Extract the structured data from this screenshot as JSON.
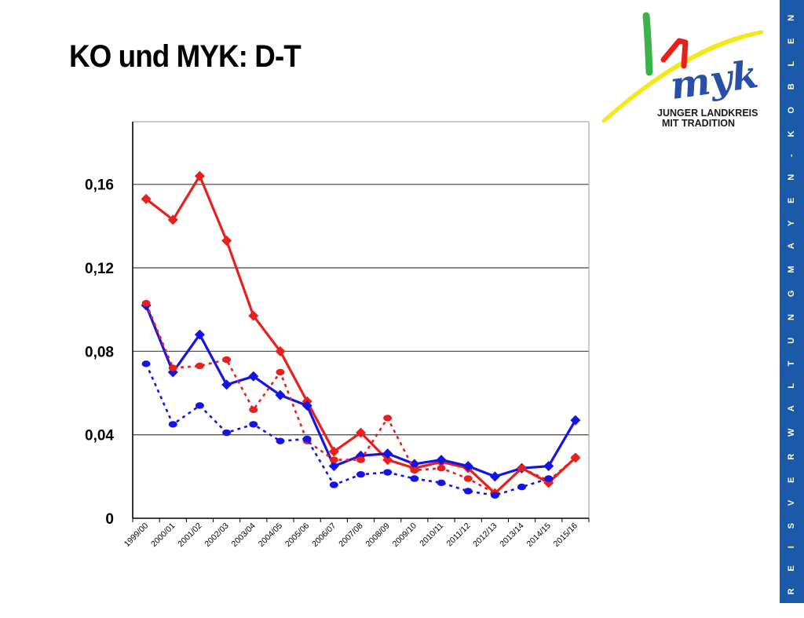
{
  "slide": {
    "title": "KO und MYK: D-T",
    "side_band_text": "K R E I S V E R W A L T U N G   M A Y E N - K O B L E N Z",
    "logo": {
      "wordmark": "myk",
      "tagline_line1": "JUNGER LANDKREIS",
      "tagline_line2": "MIT TRADITION"
    }
  },
  "colors": {
    "red": "#e8201c",
    "blue": "#1414e6",
    "side_band": "#1a5aa8",
    "logo_green": "#3cb34a",
    "logo_red": "#e8201c",
    "logo_yellow": "#f2e81c",
    "logo_blue": "#2a4fa8"
  },
  "chart_data": {
    "type": "line",
    "title": "",
    "xlabel": "",
    "ylabel": "",
    "ylim": [
      0,
      0.19
    ],
    "yticks": [
      0,
      0.04,
      0.08,
      0.12,
      0.16
    ],
    "ytick_labels": [
      "0",
      "0,04",
      "0,08",
      "0,12",
      "0,16"
    ],
    "grid": "horizontal",
    "legend": "none",
    "categories": [
      "1999/00",
      "2000/01",
      "2001/02",
      "2002/03",
      "2003/04",
      "2004/05",
      "2005/06",
      "2006/07",
      "2007/08",
      "2008/09",
      "2009/10",
      "2010/11",
      "2011/12",
      "2012/13",
      "2013/14",
      "2014/15",
      "2015/16"
    ],
    "series": [
      {
        "color": "#e8201c",
        "style": "solid",
        "marker": "diamond",
        "values": [
          0.153,
          0.143,
          0.164,
          0.133,
          0.097,
          0.08,
          0.056,
          0.032,
          0.041,
          0.028,
          0.024,
          0.027,
          0.024,
          0.012,
          0.024,
          0.017,
          0.029
        ]
      },
      {
        "color": "#1414e6",
        "style": "solid",
        "marker": "diamond",
        "values": [
          0.102,
          0.07,
          0.088,
          0.064,
          0.068,
          0.059,
          0.054,
          0.025,
          0.03,
          0.031,
          0.026,
          0.028,
          0.025,
          0.02,
          0.024,
          0.025,
          0.047
        ]
      },
      {
        "color": "#e8201c",
        "style": "dotted",
        "marker": "circle",
        "values": [
          0.103,
          0.072,
          0.073,
          0.076,
          0.052,
          0.07,
          0.037,
          0.028,
          0.028,
          0.048,
          0.023,
          0.024,
          0.019,
          0.012,
          0.024,
          0.018,
          0.029
        ]
      },
      {
        "color": "#1414e6",
        "style": "dotted",
        "marker": "circle",
        "values": [
          0.074,
          0.045,
          0.054,
          0.041,
          0.045,
          0.037,
          0.038,
          0.016,
          0.021,
          0.022,
          0.019,
          0.017,
          0.013,
          0.011,
          0.015,
          0.019,
          null
        ]
      }
    ]
  }
}
